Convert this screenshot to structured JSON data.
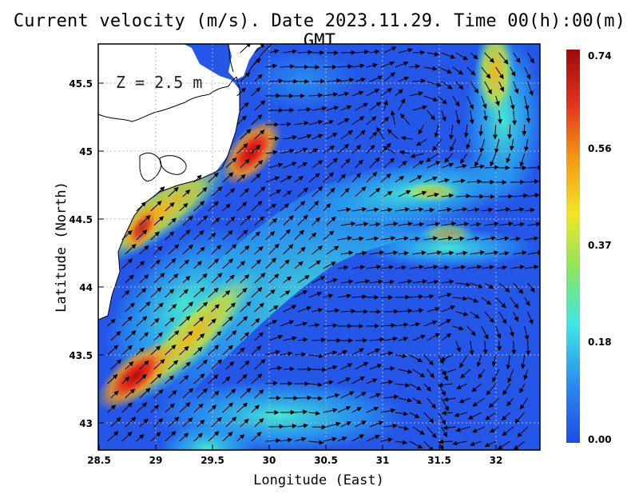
{
  "title": "Current velocity (m/s). Date 2023.11.29. Time 00(h):00(m) GMT",
  "depth_label": "Z = 2.5 m",
  "xlabel": "Longitude (East)",
  "ylabel": "Latitude (North)",
  "x_ticks": [
    "28.5",
    "29",
    "29.5",
    "30",
    "30.5",
    "31",
    "31.5",
    "32"
  ],
  "y_ticks": [
    "45.5",
    "45",
    "44.5",
    "44",
    "43.5",
    "43"
  ],
  "colorbar": {
    "ticks": [
      "0.74",
      "0.56",
      "0.37",
      "0.18",
      "0.00"
    ],
    "colors": [
      "#1e4be6",
      "#2aa0f0",
      "#3ee6e6",
      "#9be65a",
      "#f0e628",
      "#f59a14",
      "#e6321e",
      "#a00a0a"
    ]
  },
  "chart_data": {
    "type": "vector_field_map",
    "variable": "Current velocity (m/s)",
    "date": "2023.11.29",
    "time": "00(h):00(m) GMT",
    "depth": "Z = 2.5 m",
    "xlabel": "Longitude (East)",
    "ylabel": "Latitude (North)",
    "xlim": [
      28.5,
      32.4
    ],
    "ylim": [
      42.8,
      45.8
    ],
    "grid": true,
    "colorbar_range": [
      0.0,
      0.74
    ],
    "high_speed_zones": [
      {
        "lon": 29.85,
        "lat": 45.0,
        "speed": 0.72
      },
      {
        "lon": 28.7,
        "lat": 43.3,
        "speed": 0.65
      },
      {
        "lon": 28.8,
        "lat": 44.5,
        "speed": 0.6
      },
      {
        "lon": 31.9,
        "lat": 45.6,
        "speed": 0.55
      }
    ]
  }
}
